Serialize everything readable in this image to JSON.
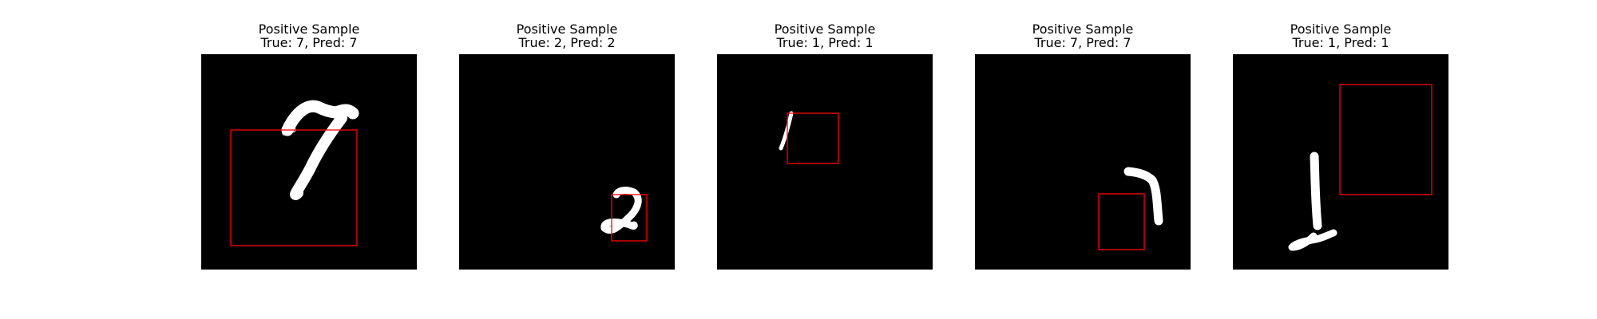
{
  "figure": {
    "samples": [
      {
        "title": "Positive Sample",
        "subtitle": "True: 7, Pred: 7",
        "true_label": "7",
        "pred_label": "7",
        "digit": "7"
      },
      {
        "title": "Positive Sample",
        "subtitle": "True: 2, Pred: 2",
        "true_label": "2",
        "pred_label": "2",
        "digit": "2"
      },
      {
        "title": "Positive Sample",
        "subtitle": "True: 1, Pred: 1",
        "true_label": "1",
        "pred_label": "1",
        "digit": "1"
      },
      {
        "title": "Positive Sample",
        "subtitle": "True: 7, Pred: 7",
        "true_label": "7",
        "pred_label": "7",
        "digit": "7"
      },
      {
        "title": "Positive Sample",
        "subtitle": "True: 1, Pred: 1",
        "true_label": "1",
        "pred_label": "1",
        "digit": "1"
      }
    ],
    "colors": {
      "background": "#000000",
      "digit": "#ffffff",
      "box": "#ff0000"
    }
  }
}
